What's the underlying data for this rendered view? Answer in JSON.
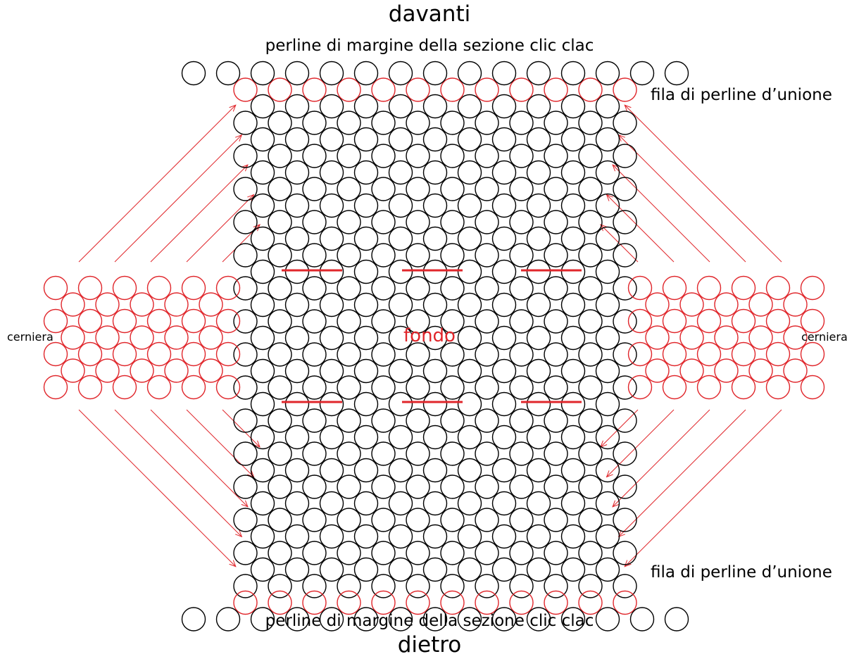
{
  "labels": {
    "front": "davanti",
    "back": "dietro",
    "edge_top": "perline di margine della sezione clic clac",
    "edge_bottom": "perline di margine della sezione clic clac",
    "join_top": "fila di perline d’unione",
    "join_bottom": "fila di perline d’unione",
    "hinge_left": "cerniera",
    "hinge_right": "cerniera",
    "center": "fondo"
  },
  "colors": {
    "black": "#000000",
    "red": "#e0262b",
    "background": "#ffffff"
  },
  "main_grid": {
    "rows": 30,
    "beads_even_row": 11,
    "beads_odd_row": 12
  },
  "edge_beads_per_row": 15,
  "join_beads_per_row": 12,
  "hinge_grid": {
    "rows": 7,
    "beads_even_row": 6,
    "beads_odd_row": 5
  },
  "stitch_marks": 6,
  "arrows_per_quadrant": 5
}
